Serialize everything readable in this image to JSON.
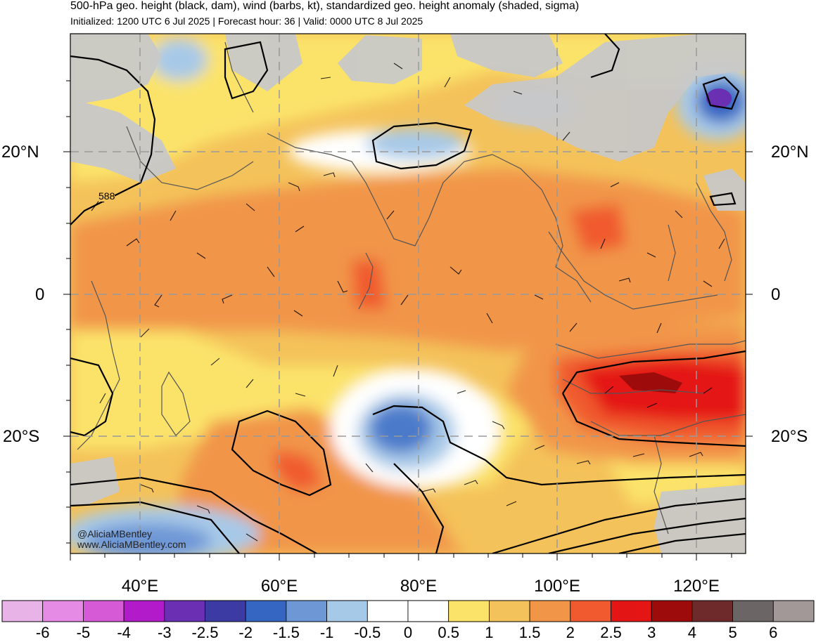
{
  "header": {
    "title": "500-hPa geo. height (black, dam), wind (barbs, kt), standardized geo. height anomaly (shaded, sigma)",
    "subtitle": "Initialized: 1200 UTC 6 Jul 2025 | Forecast hour: 36 | Valid: 0000 UTC 8 Jul 2025"
  },
  "map": {
    "region": "Indian Ocean / South and Southeast Asia",
    "lat_labels": [
      "20°N",
      "0",
      "20°S"
    ],
    "lon_labels": [
      "40°E",
      "60°E",
      "80°E",
      "100°E",
      "120°E"
    ],
    "contour_label": "588",
    "land_color": "#c8c8c8",
    "credits": [
      "@AliciaMBentley",
      "www.AliciaMBentley.com"
    ]
  },
  "colorbar": {
    "labels": [
      "-6",
      "-5",
      "-4",
      "-3",
      "-2.5",
      "-2",
      "-1.5",
      "-1",
      "-0.5",
      "0",
      "0.5",
      "1",
      "1.5",
      "2",
      "2.5",
      "3",
      "4",
      "5",
      "6"
    ],
    "colors": [
      "#e8b4e8",
      "#e58ae5",
      "#d65ad6",
      "#b21bc9",
      "#6a2fb2",
      "#3b3ba3",
      "#3566c2",
      "#6e97d6",
      "#a7c9e8",
      "#ffffff",
      "#ffffff",
      "#fbe36a",
      "#f4c25a",
      "#f19548",
      "#f05a2e",
      "#e41515",
      "#9e0b0b",
      "#6e2a2a",
      "#6c6565",
      "#a39898"
    ]
  }
}
